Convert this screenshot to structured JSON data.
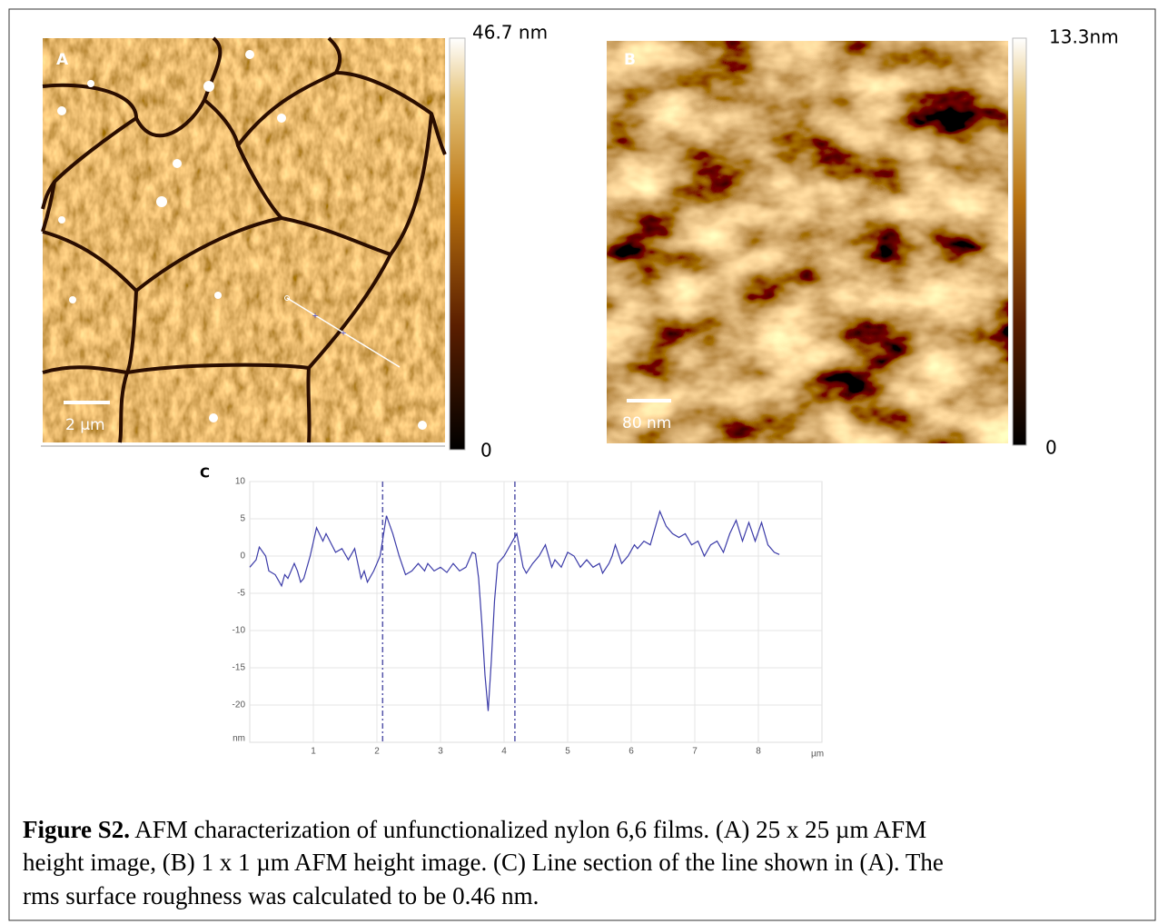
{
  "panels": [
    {
      "label": "A",
      "colorbar_max": "46.7 nm",
      "colorbar_min": "0",
      "scale_bar": "2 µm"
    },
    {
      "label": "B",
      "colorbar_max": "13.3nm",
      "colorbar_min": "0",
      "scale_bar": "80 nm"
    }
  ],
  "chart_data": {
    "type": "line",
    "label": "C",
    "y_label": "nm",
    "x_label": "µm",
    "color": "#3b3ba8",
    "grid": true,
    "xlim": [
      0,
      9
    ],
    "ylim": [
      -25,
      10
    ],
    "xticks": [
      1,
      2,
      3,
      4,
      5,
      6,
      7,
      8
    ],
    "yticks": [
      10,
      5,
      0,
      -5,
      -10,
      -15,
      -20
    ],
    "markers": [
      2.09,
      4.17
    ],
    "marker_color": "#5555aa",
    "x": [
      0,
      0.1,
      0.15,
      0.25,
      0.3,
      0.4,
      0.5,
      0.55,
      0.6,
      0.7,
      0.75,
      0.8,
      0.85,
      0.95,
      1.05,
      1.15,
      1.2,
      1.35,
      1.45,
      1.55,
      1.65,
      1.75,
      1.8,
      1.85,
      1.95,
      2.05,
      2.15,
      2.25,
      2.35,
      2.45,
      2.55,
      2.65,
      2.75,
      2.8,
      2.9,
      3.0,
      3.1,
      3.2,
      3.3,
      3.4,
      3.45,
      3.5,
      3.55,
      3.6,
      3.65,
      3.7,
      3.75,
      3.8,
      3.85,
      3.9,
      4.0,
      4.1,
      4.2,
      4.3,
      4.35,
      4.45,
      4.55,
      4.65,
      4.75,
      4.8,
      4.9,
      5.0,
      5.1,
      5.2,
      5.3,
      5.4,
      5.5,
      5.55,
      5.65,
      5.7,
      5.75,
      5.85,
      5.95,
      6.05,
      6.1,
      6.2,
      6.3,
      6.35,
      6.45,
      6.55,
      6.65,
      6.75,
      6.85,
      6.95,
      7.05,
      7.15,
      7.25,
      7.35,
      7.45,
      7.55,
      7.65,
      7.75,
      7.85,
      7.95,
      8.05,
      8.15,
      8.25,
      8.33
    ],
    "values": [
      -1.5,
      -0.5,
      1.2,
      0,
      -2,
      -2.5,
      -4,
      -2.5,
      -3,
      -1,
      -2,
      -3.5,
      -3,
      0,
      3.8,
      2,
      3,
      0.5,
      1,
      -0.5,
      1,
      -3,
      -2,
      -3.5,
      -2,
      0,
      5.4,
      3,
      0,
      -2.5,
      -2,
      -1,
      -2,
      -1,
      -2,
      -1.5,
      -2.2,
      -1,
      -2,
      -1.5,
      -0.5,
      0.5,
      0.3,
      -3,
      -9,
      -16,
      -20.8,
      -14,
      -6,
      -1,
      0,
      1.5,
      3,
      -1.5,
      -2.3,
      -1,
      0,
      1.5,
      -1.5,
      -0.5,
      -1.5,
      0.5,
      0,
      -1.5,
      -0.5,
      -1.5,
      -1,
      -2.3,
      -1,
      0,
      1.5,
      -1,
      0,
      1.5,
      1,
      2,
      1.5,
      3,
      6,
      4,
      3,
      2.5,
      3,
      1.5,
      2,
      0,
      1.5,
      2,
      0.5,
      3,
      4.8,
      2,
      4.5,
      2,
      4.5,
      1.5,
      0.5,
      0.2
    ]
  },
  "caption": {
    "title": "Figure S2.",
    "lines": [
      "AFM characterization of unfunctionalized nylon 6,6 films. (A) 25 x 25 µm AFM",
      "height image, (B) 1 x 1 µm AFM height image. (C) Line section of the line shown in (A). The",
      "rms surface roughness was calculated to be 0.46 nm."
    ]
  }
}
